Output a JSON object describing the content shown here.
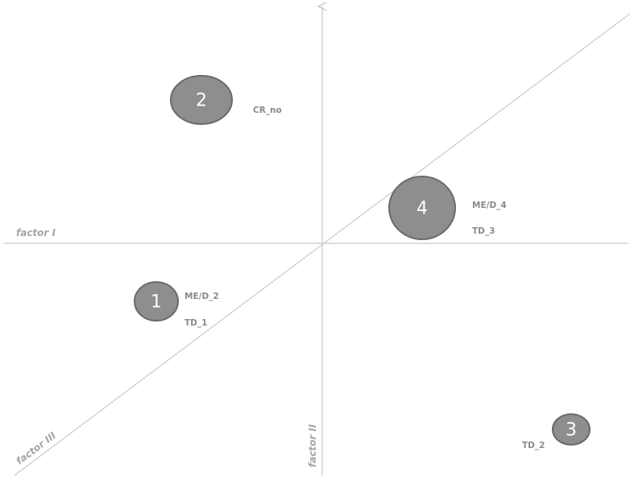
{
  "axes": {
    "factor_i": "factor I",
    "factor_ii": "factor II",
    "factor_iii": "factor III"
  },
  "clusters": [
    {
      "number": "1",
      "labels": [
        "ME/D_2",
        "TD_1"
      ]
    },
    {
      "number": "2",
      "labels": [
        "CR_no"
      ]
    },
    {
      "number": "3",
      "labels": [
        "TD_2"
      ]
    },
    {
      "number": "4",
      "labels": [
        "ME/D_4",
        "TD_3"
      ]
    }
  ],
  "colors": {
    "axis": "#c9c9c9",
    "cluster_fill": "#8e8e8e",
    "cluster_stroke": "#6a6a6a",
    "label": "#8a8a8a"
  }
}
